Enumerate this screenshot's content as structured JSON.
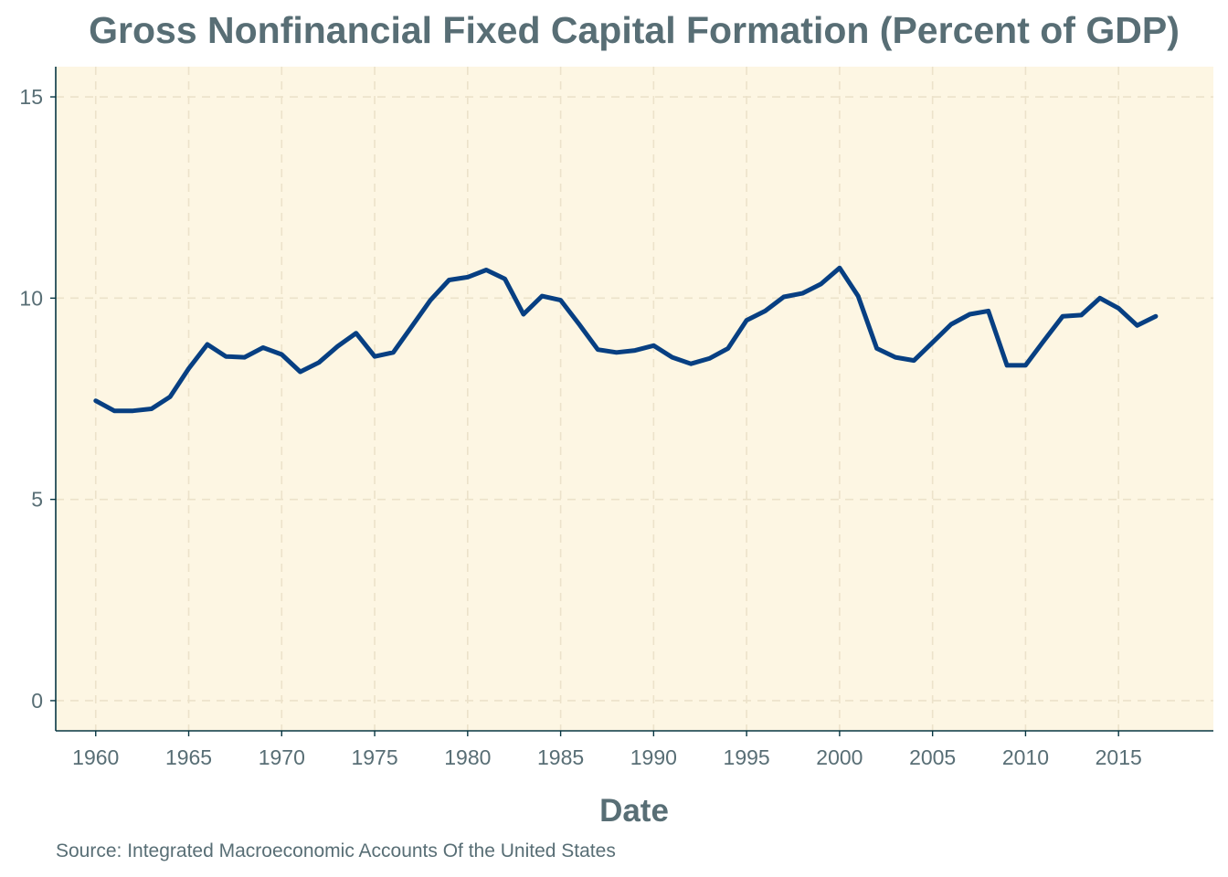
{
  "chart_data": {
    "type": "line",
    "title": "Gross Nonfinancial Fixed Capital Formation (Percent of GDP)",
    "xlabel": "Date",
    "ylabel": "",
    "caption": "Source: Integrated Macroeconomic Accounts Of the United States",
    "x_ticks": [
      "1960",
      "1965",
      "1970",
      "1975",
      "1980",
      "1985",
      "1990",
      "1995",
      "2000",
      "2005",
      "2010",
      "2015"
    ],
    "y_ticks": [
      "0",
      "5",
      "10",
      "15"
    ],
    "xlim": [
      1957.85,
      2020.1
    ],
    "ylim": [
      -0.75,
      15.75
    ],
    "grid": true,
    "legend": "none",
    "colors": {
      "panel_background": "#fdf6e3",
      "line": "#073f82",
      "text": "#586e75",
      "grid": "#ece2ca",
      "axis": "#073642"
    },
    "series": [
      {
        "x": [
          1960,
          1961,
          1962,
          1963,
          1964,
          1965,
          1966,
          1967,
          1968,
          1969,
          1970,
          1971,
          1972,
          1973,
          1974,
          1975,
          1976,
          1977,
          1978,
          1979,
          1980,
          1981,
          1982,
          1983,
          1984,
          1985,
          1986,
          1987,
          1988,
          1989,
          1990,
          1991,
          1992,
          1993,
          1994,
          1995,
          1996,
          1997,
          1998,
          1999,
          2000,
          2001,
          2002,
          2003,
          2004,
          2005,
          2006,
          2007,
          2008,
          2009,
          2010,
          2011,
          2012,
          2013,
          2014,
          2015,
          2016,
          2017
        ],
        "values": [
          7.45,
          7.2,
          7.2,
          7.25,
          7.55,
          8.25,
          8.85,
          8.55,
          8.53,
          8.77,
          8.6,
          8.17,
          8.4,
          8.8,
          9.13,
          8.55,
          8.65,
          9.3,
          9.95,
          10.45,
          10.52,
          10.7,
          10.48,
          9.6,
          10.05,
          9.95,
          9.35,
          8.72,
          8.65,
          8.7,
          8.82,
          8.53,
          8.37,
          8.5,
          8.75,
          9.45,
          9.68,
          10.03,
          10.12,
          10.35,
          10.75,
          10.05,
          8.75,
          8.53,
          8.45,
          8.9,
          9.35,
          9.6,
          9.68,
          8.33,
          8.33,
          8.95,
          9.55,
          9.58,
          10.0,
          9.75,
          9.32,
          9.55
        ]
      }
    ]
  }
}
